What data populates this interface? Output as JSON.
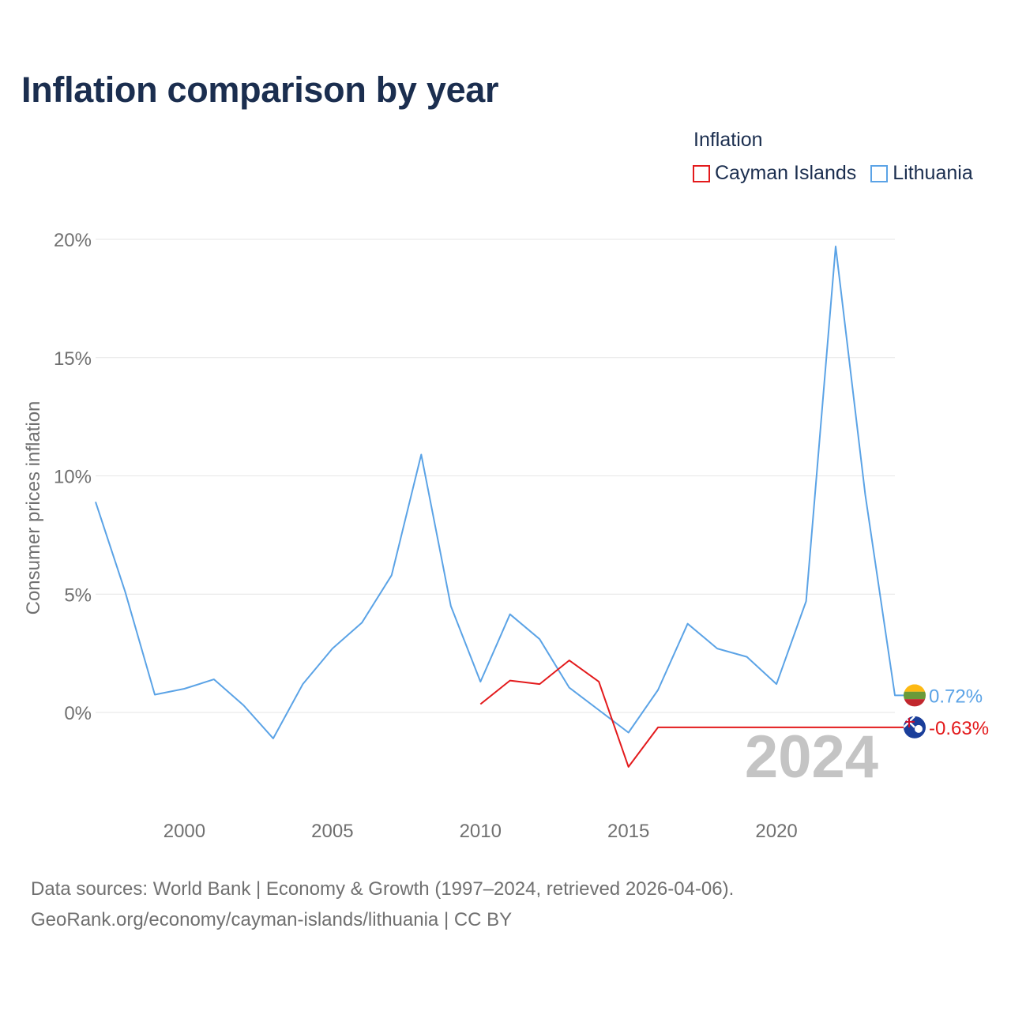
{
  "title": "Inflation comparison by year",
  "legend": {
    "title": "Inflation",
    "items": [
      {
        "label": "Cayman Islands",
        "color": "#e31a1c"
      },
      {
        "label": "Lithuania",
        "color": "#5ba3e6"
      }
    ]
  },
  "chart_data": {
    "type": "line",
    "title": "Inflation comparison by year",
    "xlabel": "",
    "ylabel": "Consumer prices inflation",
    "xlim": [
      1997,
      2024
    ],
    "ylim": [
      -4,
      20
    ],
    "x_ticks": [
      2000,
      2005,
      2010,
      2015,
      2020
    ],
    "x_tick_labels": [
      "2000",
      "2005",
      "2010",
      "2015",
      "2020"
    ],
    "y_ticks": [
      0,
      5,
      10,
      15,
      20
    ],
    "y_tick_labels": [
      "0%",
      "5%",
      "10%",
      "15%",
      "20%"
    ],
    "grid": true,
    "watermark_year": "2024",
    "series": [
      {
        "name": "Lithuania",
        "color": "#5ba3e6",
        "x": [
          1997,
          1998,
          1999,
          2000,
          2001,
          2002,
          2003,
          2004,
          2005,
          2006,
          2007,
          2008,
          2009,
          2010,
          2011,
          2012,
          2013,
          2014,
          2015,
          2016,
          2017,
          2018,
          2019,
          2020,
          2021,
          2022,
          2023,
          2024
        ],
        "values": [
          8.9,
          5.1,
          0.75,
          1.0,
          1.4,
          0.3,
          -1.1,
          1.2,
          2.7,
          3.8,
          5.8,
          10.9,
          4.5,
          1.3,
          4.15,
          3.1,
          1.05,
          0.1,
          -0.85,
          0.95,
          3.75,
          2.7,
          2.35,
          1.2,
          4.7,
          19.7,
          9.2,
          0.72
        ],
        "end_label": "0.72%"
      },
      {
        "name": "Cayman Islands",
        "color": "#e31a1c",
        "x": [
          2010,
          2011,
          2012,
          2013,
          2014,
          2015,
          2016,
          2017,
          2018,
          2019,
          2020,
          2021,
          2022,
          2023,
          2024
        ],
        "values": [
          0.35,
          1.35,
          1.2,
          2.2,
          1.3,
          -2.3,
          -0.63,
          -0.63,
          -0.63,
          -0.63,
          -0.63,
          -0.63,
          -0.63,
          -0.63,
          -0.63
        ],
        "end_label": "-0.63%"
      }
    ]
  },
  "source": {
    "line1": "Data sources: World Bank | Economy & Growth (1997–2024, retrieved 2026-04-06).",
    "line2": "GeoRank.org/economy/cayman-islands/lithuania | CC BY"
  }
}
